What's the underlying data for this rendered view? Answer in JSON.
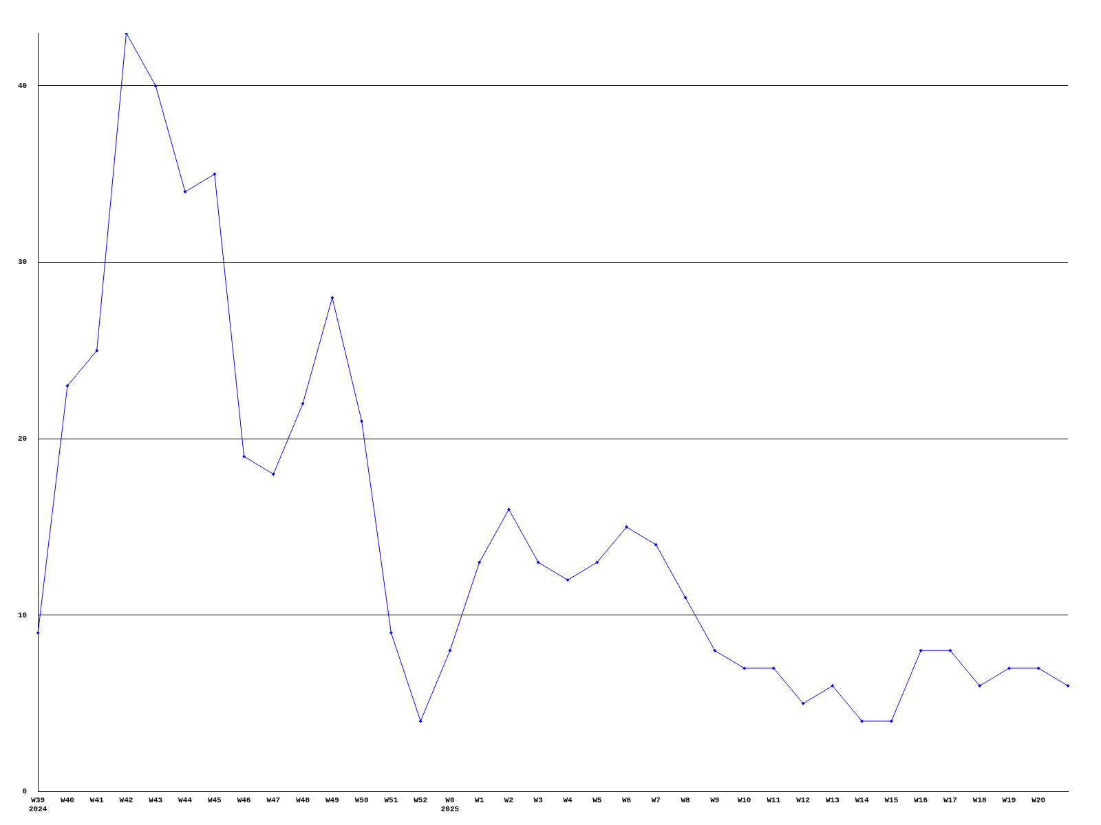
{
  "chart_data": {
    "type": "line",
    "categories": [
      "W39\n2024",
      "W40",
      "W41",
      "W42",
      "W43",
      "W44",
      "W45",
      "W46",
      "W47",
      "W48",
      "W49",
      "W50",
      "W51",
      "W52",
      "W0\n2025",
      "W1",
      "W2",
      "W3",
      "W4",
      "W5",
      "W6",
      "W7",
      "W8",
      "W9",
      "W10",
      "W11",
      "W12",
      "W13",
      "W14",
      "W15",
      "W16",
      "W17",
      "W18",
      "W19",
      "W20",
      null
    ],
    "series": [
      {
        "color": "#0000ff",
        "values": [
          9,
          23,
          25,
          43,
          40,
          34,
          35,
          19,
          18,
          22,
          28,
          21,
          9,
          4,
          8,
          13,
          16,
          13,
          12,
          13,
          15,
          14,
          11,
          8,
          7,
          7,
          5,
          6,
          4,
          4,
          8,
          8,
          6,
          7,
          7,
          6
        ]
      }
    ],
    "ylim": [
      0,
      43
    ],
    "yticks": [
      0,
      10,
      20,
      30,
      40
    ],
    "grid": "y",
    "legend": false,
    "marker": "diamond",
    "line_style": "solid"
  }
}
